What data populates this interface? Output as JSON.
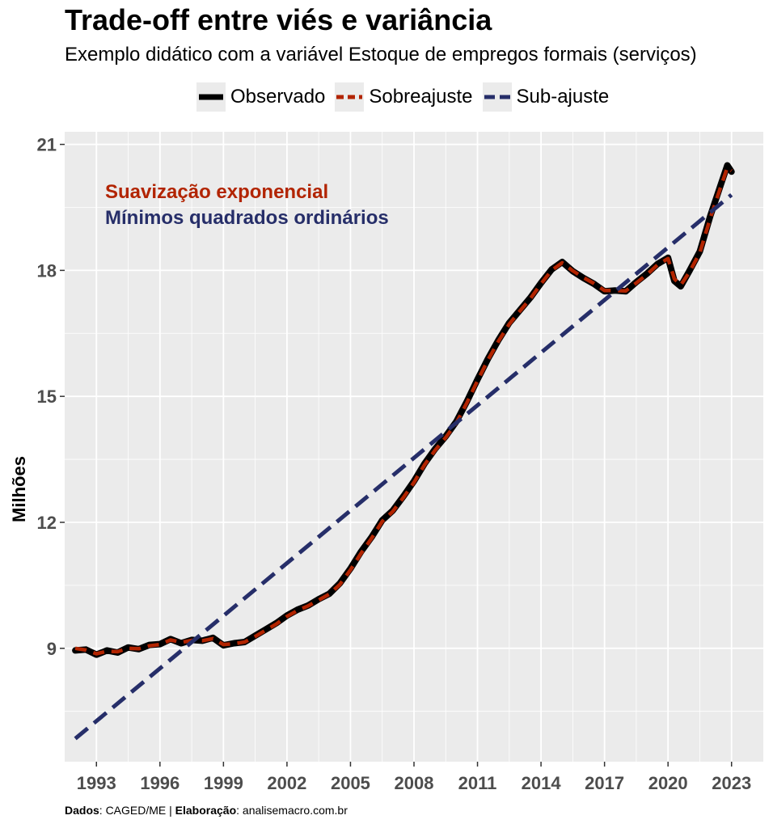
{
  "chart_data": {
    "type": "line",
    "title": "Trade-off entre viés e variância",
    "subtitle": "Exemplo didático com a variável Estoque de empregos formais (serviços)",
    "xlabel": "",
    "ylabel": "Milhões",
    "xlim": [
      1991.5,
      2024.5
    ],
    "ylim": [
      6.3,
      21.3
    ],
    "xticks": [
      1993,
      1996,
      1999,
      2002,
      2005,
      2008,
      2011,
      2014,
      2017,
      2020,
      2023
    ],
    "yticks": [
      9,
      12,
      15,
      18,
      21
    ],
    "grid": true,
    "legend_position": "top",
    "annotations": [
      {
        "text": "Suavização exponencial",
        "color": "#B22400"
      },
      {
        "text": "Mínimos quadrados ordinários",
        "color": "#262E69"
      }
    ],
    "series": [
      {
        "name": "Observado",
        "color": "#000000",
        "line_style": "solid",
        "x": [
          1992.0,
          1992.5,
          1993.0,
          1993.5,
          1994.0,
          1994.5,
          1995.0,
          1995.5,
          1996.0,
          1996.5,
          1997.0,
          1997.5,
          1998.0,
          1998.5,
          1999.0,
          1999.5,
          2000.0,
          2000.5,
          2001.0,
          2001.5,
          2002.0,
          2002.5,
          2003.0,
          2003.5,
          2004.0,
          2004.5,
          2005.0,
          2005.5,
          2006.0,
          2006.5,
          2007.0,
          2007.5,
          2008.0,
          2008.5,
          2009.0,
          2009.5,
          2010.0,
          2010.5,
          2011.0,
          2011.5,
          2012.0,
          2012.5,
          2013.0,
          2013.5,
          2014.0,
          2014.5,
          2015.0,
          2015.5,
          2016.0,
          2016.5,
          2017.0,
          2017.5,
          2018.0,
          2018.5,
          2019.0,
          2019.5,
          2020.0,
          2020.3,
          2020.6,
          2021.0,
          2021.5,
          2022.0,
          2022.5,
          2022.8,
          2023.0
        ],
        "y": [
          8.95,
          8.97,
          8.85,
          8.95,
          8.9,
          9.02,
          8.98,
          9.08,
          9.1,
          9.22,
          9.12,
          9.2,
          9.18,
          9.25,
          9.07,
          9.12,
          9.15,
          9.3,
          9.45,
          9.6,
          9.78,
          9.92,
          10.02,
          10.17,
          10.3,
          10.55,
          10.9,
          11.3,
          11.65,
          12.05,
          12.28,
          12.62,
          12.98,
          13.4,
          13.75,
          14.05,
          14.4,
          14.88,
          15.4,
          15.9,
          16.35,
          16.75,
          17.05,
          17.35,
          17.7,
          18.02,
          18.2,
          17.98,
          17.82,
          17.68,
          17.5,
          17.52,
          17.5,
          17.72,
          17.92,
          18.15,
          18.3,
          17.75,
          17.62,
          17.98,
          18.45,
          19.3,
          20.05,
          20.5,
          20.35
        ]
      },
      {
        "name": "Sobreajuste",
        "color": "#B22400",
        "line_style": "dashed",
        "x": [
          1992.0,
          1992.5,
          1993.0,
          1993.5,
          1994.0,
          1994.5,
          1995.0,
          1995.5,
          1996.0,
          1996.5,
          1997.0,
          1997.5,
          1998.0,
          1998.5,
          1999.0,
          1999.5,
          2000.0,
          2000.5,
          2001.0,
          2001.5,
          2002.0,
          2002.5,
          2003.0,
          2003.5,
          2004.0,
          2004.5,
          2005.0,
          2005.5,
          2006.0,
          2006.5,
          2007.0,
          2007.5,
          2008.0,
          2008.5,
          2009.0,
          2009.5,
          2010.0,
          2010.5,
          2011.0,
          2011.5,
          2012.0,
          2012.5,
          2013.0,
          2013.5,
          2014.0,
          2014.5,
          2015.0,
          2015.5,
          2016.0,
          2016.5,
          2017.0,
          2017.5,
          2018.0,
          2018.5,
          2019.0,
          2019.5,
          2020.0,
          2020.3,
          2020.6,
          2021.0,
          2021.5,
          2022.0,
          2022.5,
          2022.8,
          2023.0
        ],
        "y": [
          9.0,
          8.96,
          8.87,
          8.93,
          8.92,
          9.0,
          8.99,
          9.06,
          9.09,
          9.2,
          9.14,
          9.19,
          9.18,
          9.23,
          9.09,
          9.11,
          9.15,
          9.28,
          9.43,
          9.58,
          9.76,
          9.9,
          10.01,
          10.15,
          10.29,
          10.52,
          10.87,
          11.26,
          11.62,
          12.02,
          12.26,
          12.59,
          12.95,
          13.37,
          13.72,
          14.02,
          14.37,
          14.85,
          15.37,
          15.87,
          16.32,
          16.72,
          17.03,
          17.33,
          17.68,
          18.0,
          18.18,
          17.99,
          17.83,
          17.69,
          17.52,
          17.52,
          17.51,
          17.7,
          17.9,
          18.13,
          18.28,
          17.8,
          17.65,
          17.95,
          18.42,
          19.25,
          20.0,
          20.45,
          20.37
        ]
      },
      {
        "name": "Sub-ajuste",
        "color": "#262E69",
        "line_style": "dashed",
        "x": [
          1992.0,
          2023.0
        ],
        "y": [
          6.85,
          19.8
        ]
      }
    ]
  },
  "caption": {
    "dados_label": "Dados",
    "dados_value": ": CAGED/ME | ",
    "elaboracao_label": "Elaboração",
    "elaboracao_value": ": analisemacro.com.br"
  }
}
